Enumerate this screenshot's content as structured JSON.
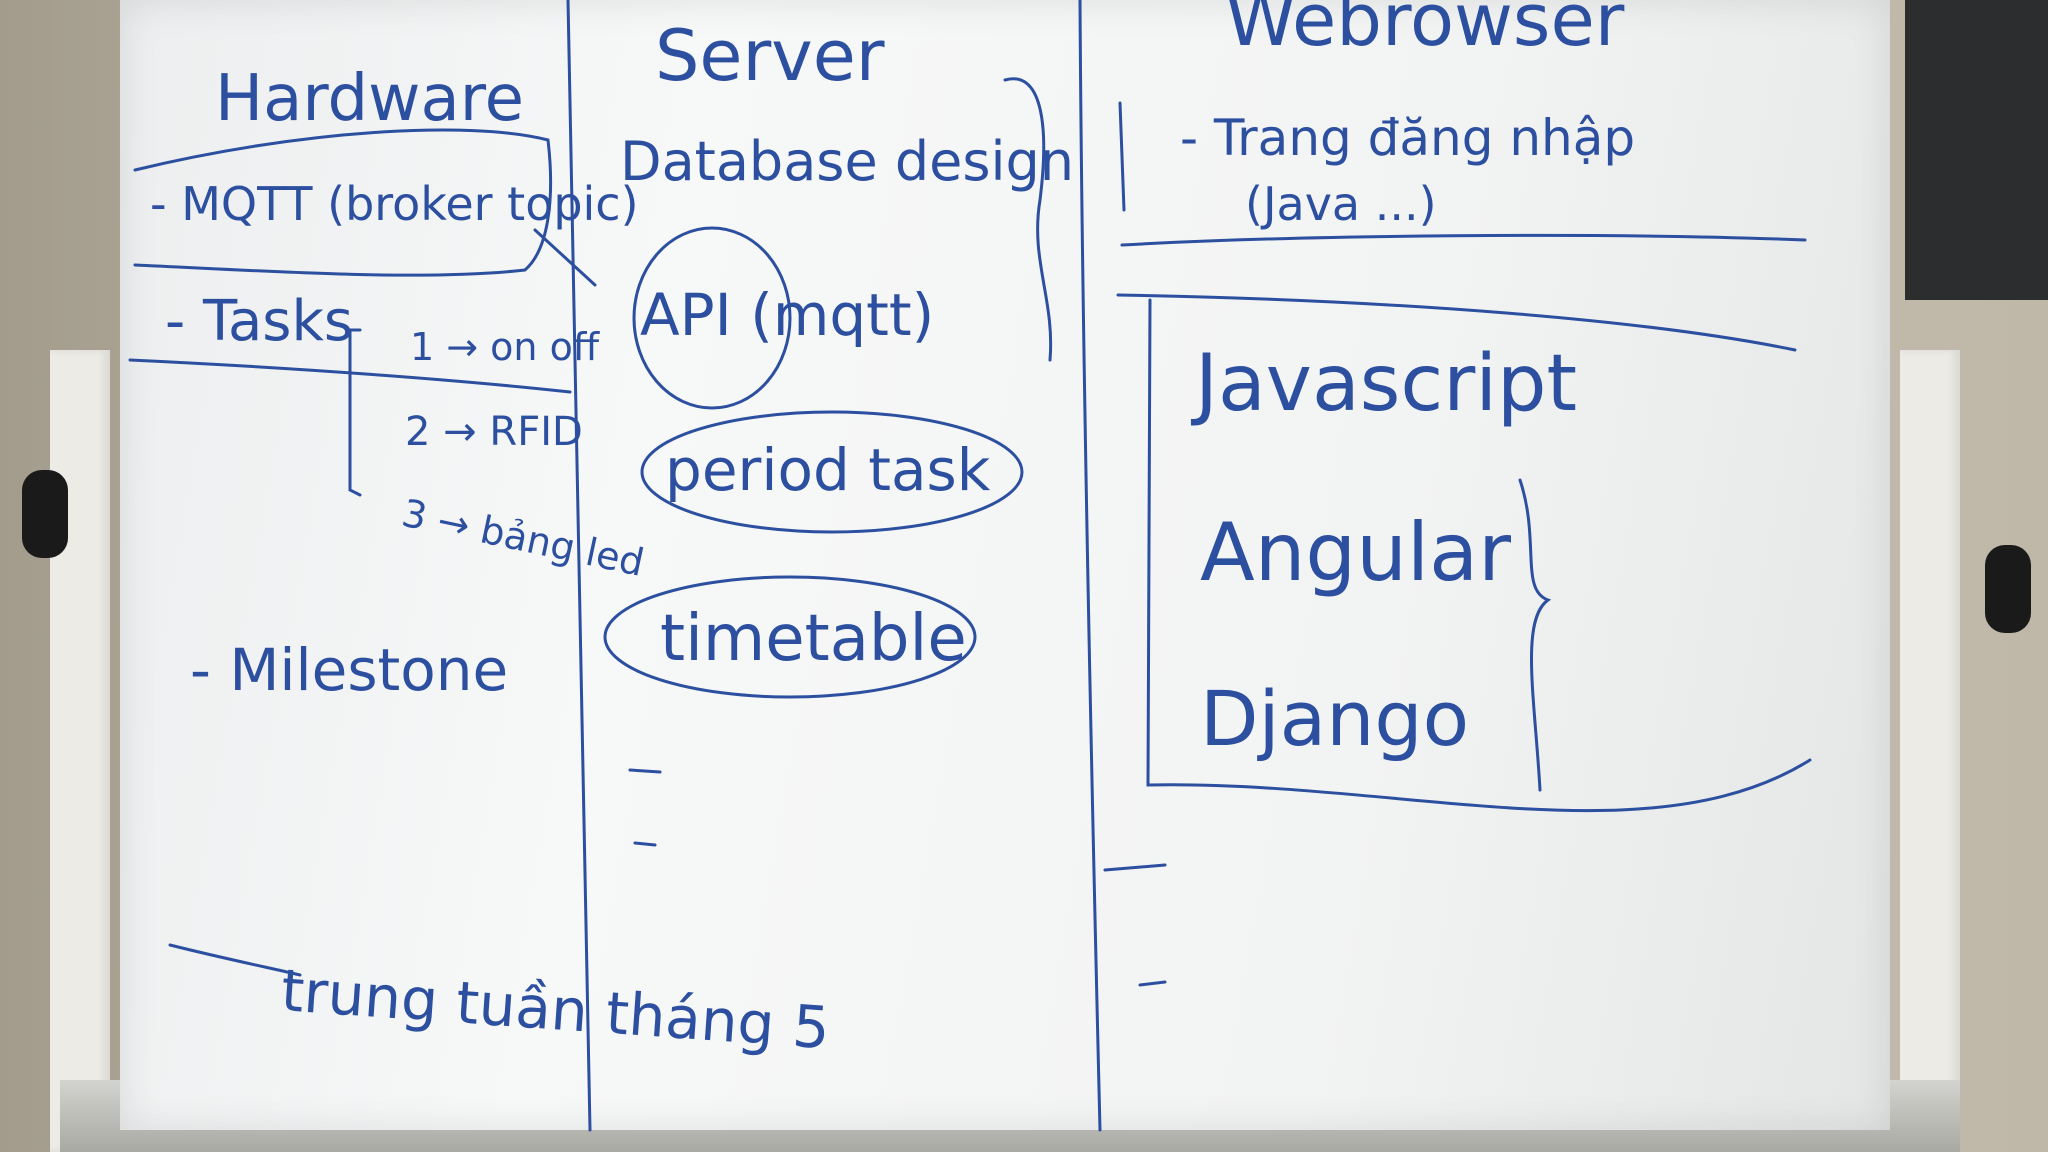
{
  "whiteboard": {
    "columns": {
      "hardware": {
        "title": "Hardware",
        "items": [
          "- MQTT (broker topic)",
          "- Tasks",
          "- Milestone"
        ],
        "tasks": [
          "1 → on off",
          "2 → RFID",
          "3 → bảng led"
        ]
      },
      "server": {
        "title": "Server",
        "items": [
          "Database design",
          "API (mqtt)",
          "period task",
          "timetable"
        ],
        "dashes": [
          "-",
          "-"
        ]
      },
      "webbrowser": {
        "title": "Webrowser",
        "items": [
          "- Trang đăng nhập",
          "(Java ...)"
        ],
        "frameworks": [
          "Javascript",
          "Angular",
          "Django"
        ],
        "dashes": [
          "-",
          "-"
        ]
      }
    },
    "footer_note": "trung tuần tháng 5",
    "ink_color": "#2c4fa0"
  }
}
